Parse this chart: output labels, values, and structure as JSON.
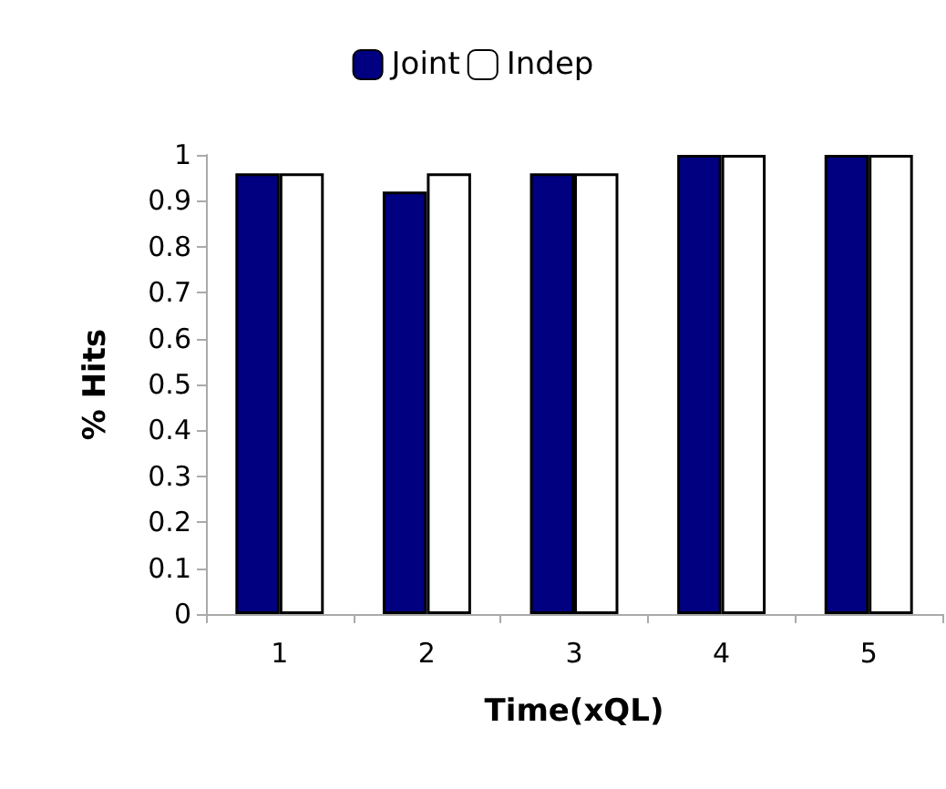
{
  "chart_data": {
    "type": "bar",
    "xlabel": "Time(xQL)",
    "ylabel": "% Hits",
    "categories": [
      "1",
      "2",
      "3",
      "4",
      "5"
    ],
    "series": [
      {
        "name": "Joint",
        "color": "#000080",
        "values": [
          0.96,
          0.92,
          0.96,
          1,
          1
        ]
      },
      {
        "name": "Indep",
        "color": "#ffffff",
        "values": [
          0.96,
          0.96,
          0.96,
          1,
          1
        ]
      }
    ],
    "ylim": [
      0,
      1
    ],
    "yticks": [
      0,
      0.1,
      0.2,
      0.3,
      0.4,
      0.5,
      0.6,
      0.7,
      0.8,
      0.9,
      1
    ],
    "grid": false,
    "legend": "top"
  }
}
